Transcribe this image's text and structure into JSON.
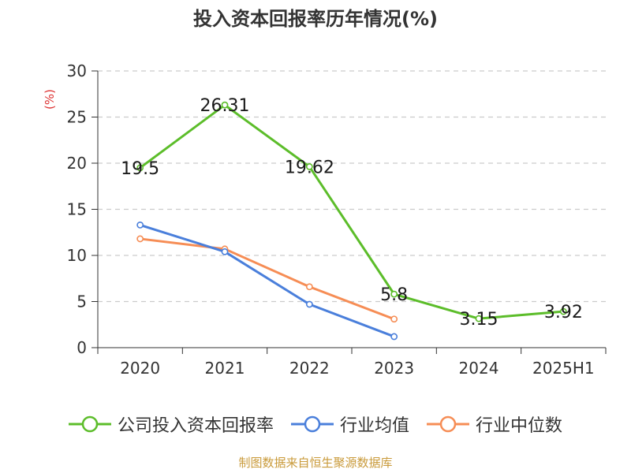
{
  "chart_data": {
    "type": "line",
    "title": "投入资本回报率历年情况(%)",
    "ylabel": "(%)",
    "xlabel": "",
    "categories": [
      "2020",
      "2021",
      "2022",
      "2023",
      "2024",
      "2025H1"
    ],
    "ylim": [
      0,
      30
    ],
    "yticks": [
      0,
      5,
      10,
      15,
      20,
      25,
      30
    ],
    "grid": true,
    "legend_position": "bottom",
    "series": [
      {
        "name": "公司投入资本回报率",
        "color": "#5cbd2a",
        "values": [
          19.5,
          26.31,
          19.62,
          5.8,
          3.15,
          3.92
        ],
        "labels": true
      },
      {
        "name": "行业均值",
        "color": "#4a7fdb",
        "values": [
          13.3,
          10.4,
          4.7,
          1.2,
          null,
          null
        ],
        "labels": false
      },
      {
        "name": "行业中位数",
        "color": "#f68d55",
        "values": [
          11.8,
          10.7,
          6.6,
          3.1,
          null,
          null
        ],
        "labels": false
      }
    ]
  },
  "footer": {
    "source": "制图数据来自恒生聚源数据库"
  }
}
